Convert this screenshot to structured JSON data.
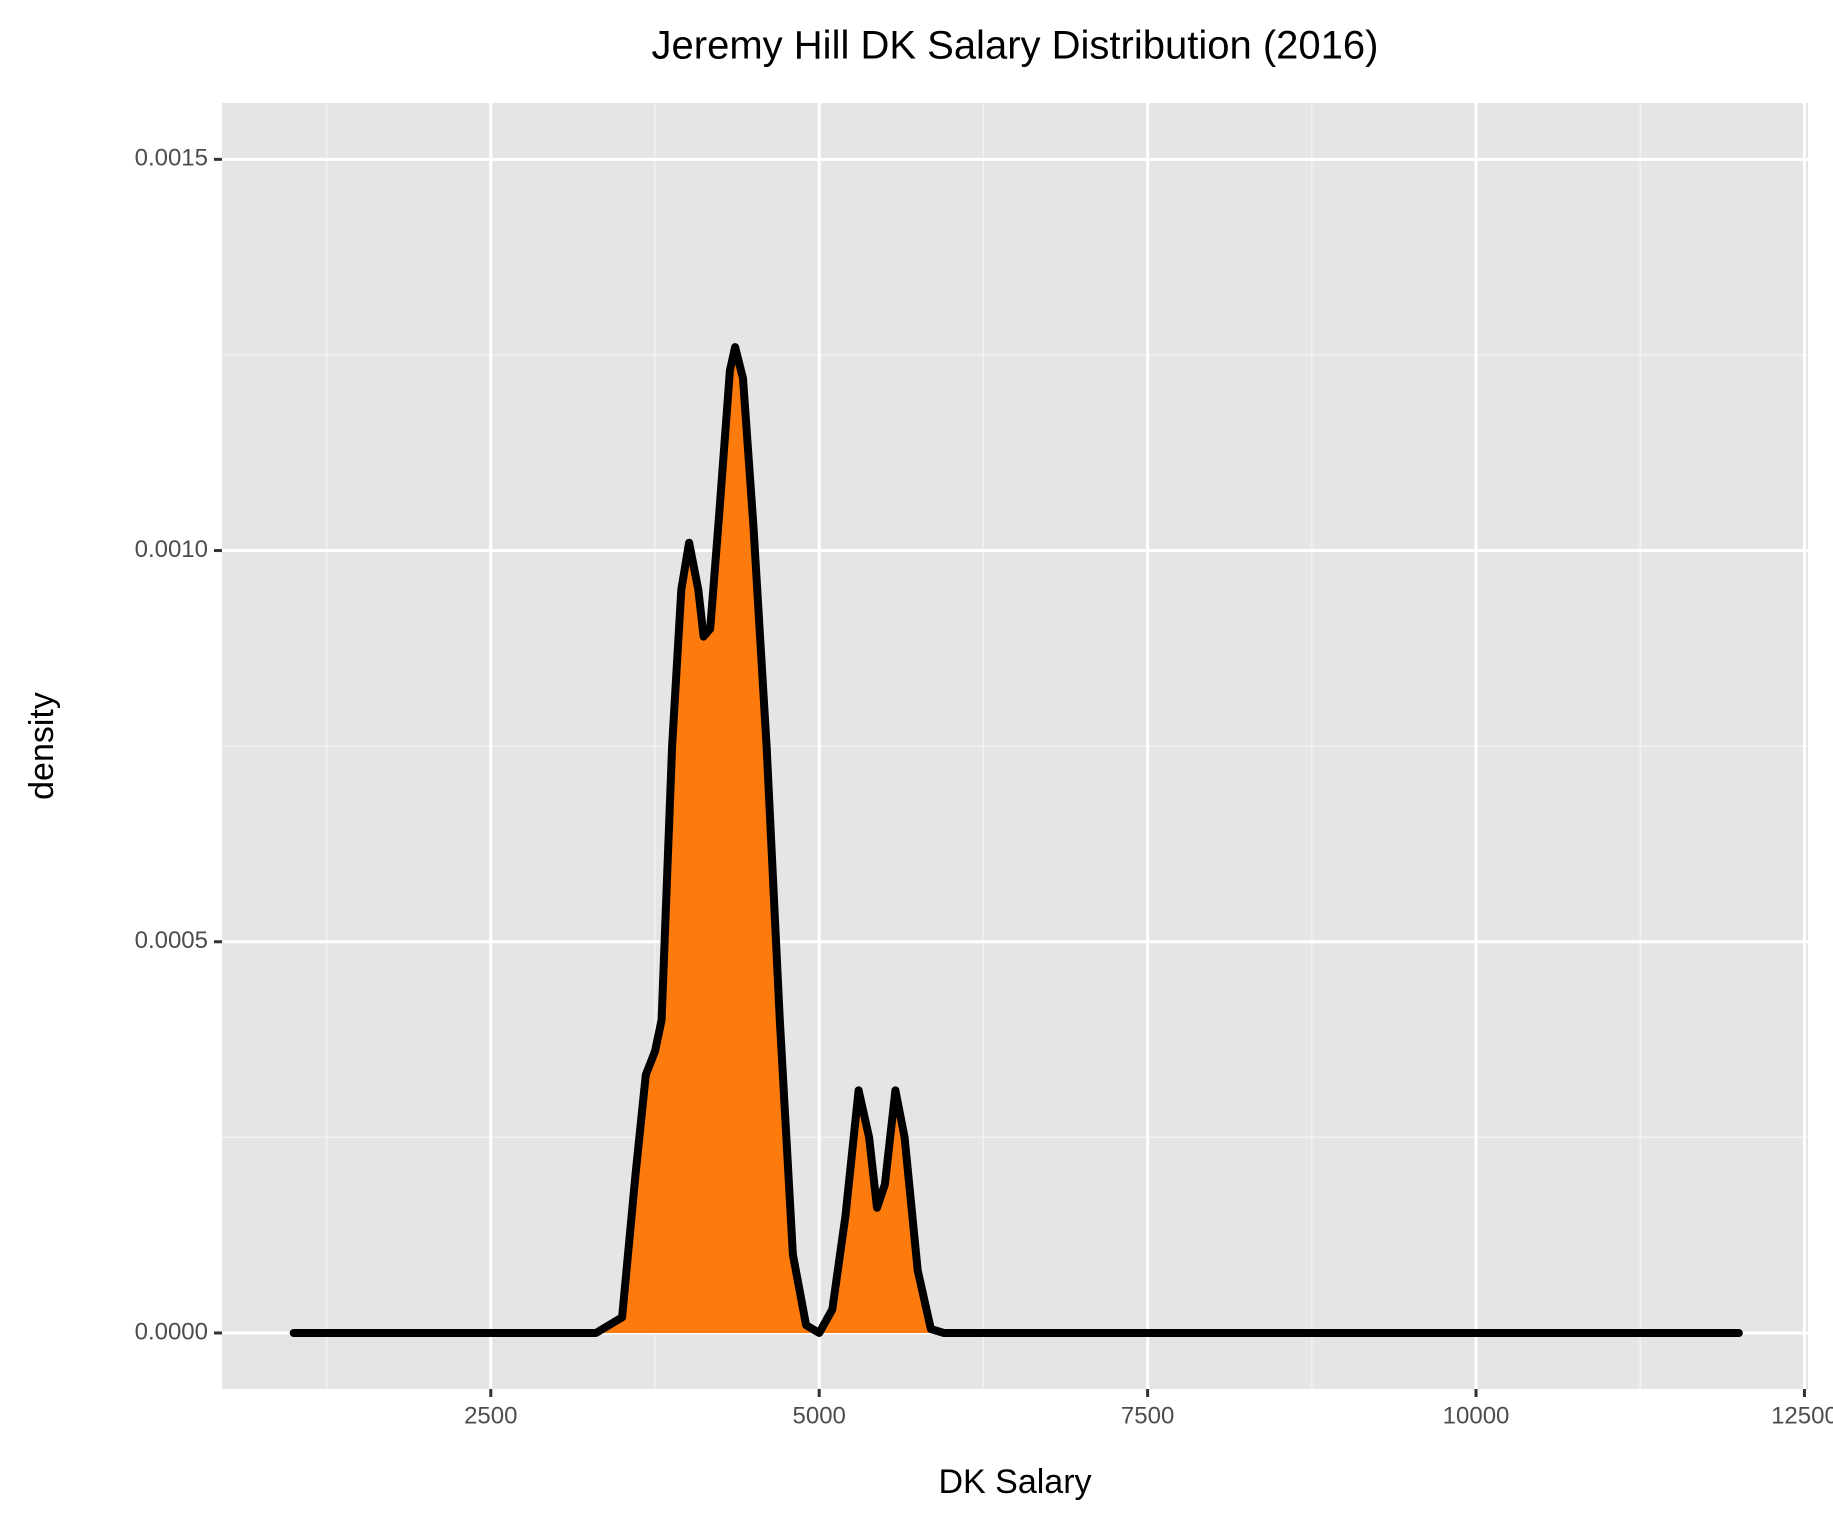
{
  "chart_data": {
    "type": "density",
    "title": "Jeremy Hill DK Salary Distribution (2016)",
    "x_label": "DK Salary",
    "y_label": "density",
    "x": [
      1000,
      3300,
      3500,
      3600,
      3680,
      3750,
      3800,
      3880,
      3950,
      4010,
      4080,
      4120,
      4170,
      4240,
      4320,
      4360,
      4420,
      4500,
      4600,
      4700,
      4800,
      4900,
      5000,
      5100,
      5200,
      5300,
      5380,
      5440,
      5500,
      5580,
      5650,
      5750,
      5850,
      5950,
      12000
    ],
    "values": [
      0,
      0,
      2e-05,
      0.0002,
      0.00033,
      0.00036,
      0.0004,
      0.00075,
      0.00095,
      0.00101,
      0.00095,
      0.00089,
      0.0009,
      0.00105,
      0.00123,
      0.00126,
      0.00122,
      0.00103,
      0.00075,
      0.0004,
      0.0001,
      1e-05,
      0,
      3e-05,
      0.00015,
      0.00031,
      0.00025,
      0.00016,
      0.00019,
      0.00031,
      0.00025,
      8e-05,
      5e-06,
      0,
      0
    ],
    "color": "#fc7b0c",
    "line_color": "#000000",
    "xlim": [
      454,
      12527
    ],
    "ylim": [
      -7.16e-05,
      0.001572
    ],
    "xticks": [
      2500,
      5000,
      7500,
      10000,
      12500
    ],
    "yticks": [
      {
        "value": 0,
        "label": "0.0000"
      },
      {
        "value": 0.0005,
        "label": "0.0005"
      },
      {
        "value": 0.001,
        "label": "0.0010"
      },
      {
        "value": 0.0015,
        "label": "0.0015"
      }
    ],
    "xminorticks": [
      1250,
      3750,
      6250,
      8750,
      11250
    ],
    "yminorticks": [
      0.00025,
      0.00075,
      0.00125
    ],
    "grid": true
  }
}
